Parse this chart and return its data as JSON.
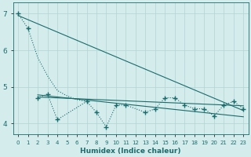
{
  "xlabel": "Humidex (Indice chaleur)",
  "xlim": [
    -0.5,
    23.5
  ],
  "ylim": [
    3.7,
    7.3
  ],
  "yticks": [
    4,
    5,
    6,
    7
  ],
  "bg_color": "#d5ecec",
  "grid_color": "#b0d4d4",
  "line_color": "#1a6b6b",
  "steep_line": {
    "x": [
      0,
      1,
      2,
      3,
      4,
      5,
      6,
      7
    ],
    "y": [
      7.0,
      6.6,
      5.8,
      5.3,
      4.9,
      4.75,
      4.65,
      4.6
    ]
  },
  "jagged_line": {
    "x": [
      2,
      3,
      4,
      7,
      8,
      9,
      10,
      11,
      13,
      14,
      15,
      16,
      17,
      18,
      19,
      20,
      21,
      22,
      23
    ],
    "y": [
      4.7,
      4.8,
      4.1,
      4.6,
      4.3,
      3.9,
      4.5,
      4.5,
      4.3,
      4.4,
      4.7,
      4.7,
      4.5,
      4.4,
      4.4,
      4.2,
      4.5,
      4.6,
      4.4
    ]
  },
  "trend_lines": [
    {
      "x": [
        0,
        23
      ],
      "y": [
        6.95,
        4.35
      ]
    },
    {
      "x": [
        2,
        23
      ],
      "y": [
        4.72,
        4.48
      ]
    },
    {
      "x": [
        2,
        23
      ],
      "y": [
        4.78,
        4.18
      ]
    }
  ]
}
